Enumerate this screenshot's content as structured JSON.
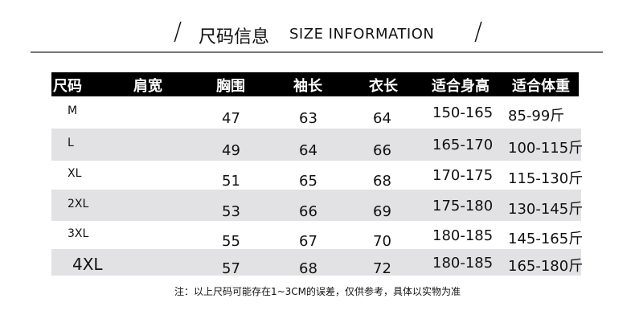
{
  "title": {
    "cn": "尺码信息",
    "en": "SIZE INFORMATION",
    "slash": "/"
  },
  "table": {
    "headers": [
      "尺码",
      "肩宽",
      "胸围",
      "袖长",
      "衣长",
      "适合身高",
      "适合体重"
    ],
    "rows": [
      {
        "size": "M",
        "shoulder": "",
        "chest": "47",
        "sleeve": "63",
        "length": "64",
        "height": "150-165",
        "weight": "85-99斤"
      },
      {
        "size": "L",
        "shoulder": "",
        "chest": "49",
        "sleeve": "64",
        "length": "66",
        "height": "165-170",
        "weight": "100-115斤"
      },
      {
        "size": "XL",
        "shoulder": "",
        "chest": "51",
        "sleeve": "65",
        "length": "68",
        "height": "170-175",
        "weight": "115-130斤"
      },
      {
        "size": "2XL",
        "shoulder": "",
        "chest": "53",
        "sleeve": "66",
        "length": "69",
        "height": "175-180",
        "weight": "130-145斤"
      },
      {
        "size": "3XL",
        "shoulder": "",
        "chest": "55",
        "sleeve": "67",
        "length": "70",
        "height": "180-185",
        "weight": "145-165斤"
      },
      {
        "size": "4XL",
        "shoulder": "",
        "chest": "57",
        "sleeve": "68",
        "length": "72",
        "height": "180-185",
        "weight": "165-180斤"
      }
    ],
    "colors": {
      "header_bg": "#000000",
      "alt_row_bg": "#e2e1e4"
    }
  },
  "note": "注：以上尺码可能存在1~3CM的误差，仅供参考，具体以实物为准"
}
